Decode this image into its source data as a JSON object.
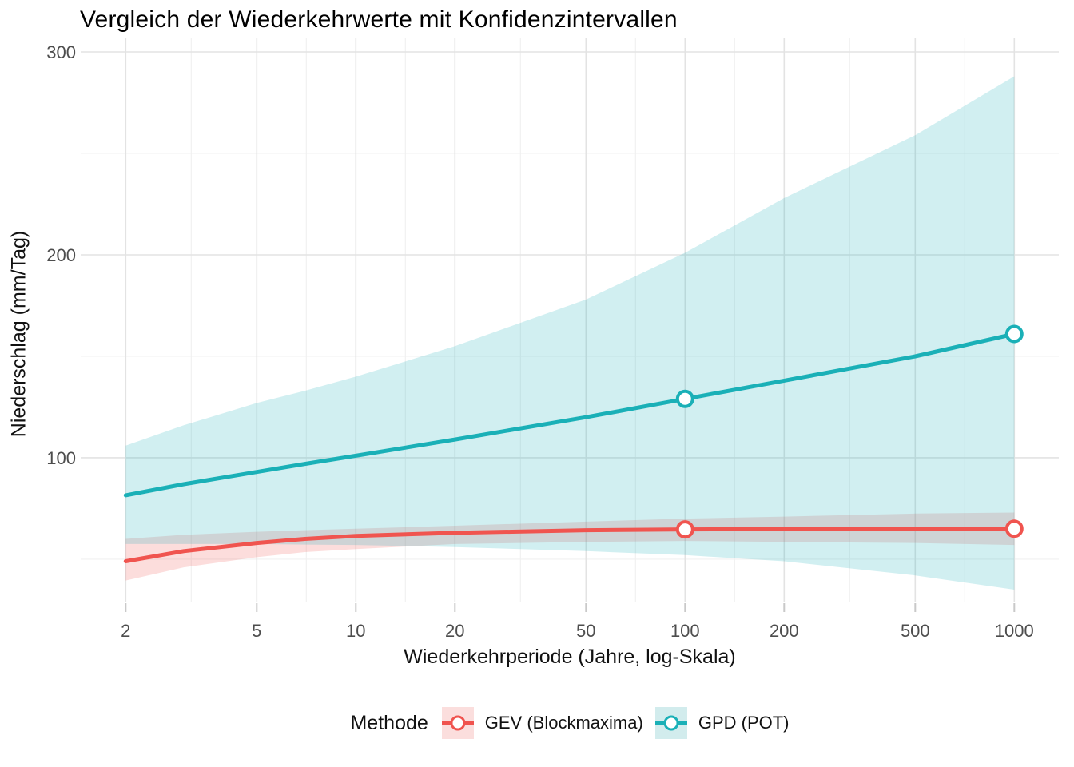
{
  "page": {
    "background": "#FFFFFF"
  },
  "chart_data": {
    "type": "line",
    "title": "Vergleich der Wiederkehrwerte mit Konfidenzintervallen",
    "xlabel": "Wiederkehrperiode (Jahre, log-Skala)",
    "ylabel": "Niederschlag (mm/Tag)",
    "legend_title": "Methode",
    "legend_position": "bottom",
    "x_scale": "log10",
    "grid": true,
    "xlim": [
      1.46,
      1365
    ],
    "ylim": [
      29.1,
      307.1
    ],
    "x_breaks": [
      2,
      5,
      10,
      20,
      50,
      100,
      200,
      500,
      1000
    ],
    "x_minor_breaks": [
      3.162,
      7.071,
      14.142,
      31.623,
      70.711,
      141.421,
      316.228,
      707.107
    ],
    "y_breaks": [
      100,
      200,
      300
    ],
    "y_minor_breaks": [
      50,
      150,
      250
    ],
    "x": [
      2,
      3,
      5,
      7,
      10,
      20,
      50,
      100,
      200,
      500,
      1000
    ],
    "series": [
      {
        "name": "GEV (Blockmaxima)",
        "color": "#F0544F",
        "fill": "#FBDEDD",
        "y": [
          49,
          54,
          58,
          60,
          61.5,
          63,
          64.3,
          64.7,
          64.9,
          65,
          65
        ],
        "lo": [
          39.5,
          46,
          51,
          53.5,
          55,
          57.5,
          58.5,
          59,
          58.5,
          58,
          57
        ],
        "hi": [
          60,
          62,
          63.5,
          64.3,
          65,
          66.5,
          68.5,
          70,
          71,
          72.5,
          73
        ],
        "markers": [
          [
            100,
            64.7
          ],
          [
            1000,
            65
          ]
        ]
      },
      {
        "name": "GPD (POT)",
        "color": "#1AB0B7",
        "fill": "#D2ECED",
        "y": [
          81.5,
          87,
          93,
          97,
          101,
          109,
          120,
          129,
          138,
          150,
          161
        ],
        "lo": [
          57.5,
          57.5,
          57.5,
          57.2,
          57,
          56,
          54,
          52,
          49,
          42,
          35
        ],
        "hi": [
          106,
          116,
          127,
          133,
          140,
          155,
          178,
          201,
          228,
          259,
          288
        ],
        "markers": [
          [
            100,
            129
          ],
          [
            1000,
            161
          ]
        ]
      }
    ],
    "style": {
      "ribbon_opacity": 0.2,
      "line_width": 5,
      "marker_radius": 9.5,
      "marker_stroke": 4,
      "grid_major": "#E3E3E3",
      "grid_minor": "#F0F0F0",
      "tick_color": "#C9C9C9",
      "tick_label_color": "#4D4D4D",
      "text_color": "#111111"
    }
  }
}
